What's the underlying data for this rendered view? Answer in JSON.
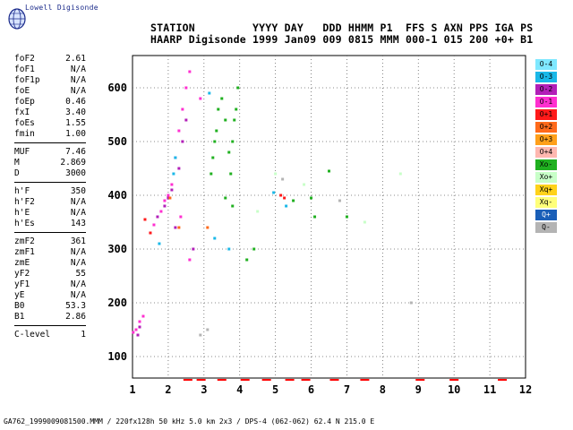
{
  "logo": {
    "text": "Lowell Digisonde"
  },
  "header": {
    "line1": "STATION         YYYY DAY   DDD HHMM P1  FFS S AXN PPS IGA PS",
    "line2": "HAARP Digisonde 1999 Jan09 009 0815 MMM 000-1 015 200 +0+ B1"
  },
  "params": [
    {
      "group": "critical",
      "rows": [
        {
          "name": "foF2",
          "value": "2.61"
        },
        {
          "name": "foF1",
          "value": "N/A"
        },
        {
          "name": "foF1p",
          "value": "N/A"
        },
        {
          "name": "foE",
          "value": "N/A"
        },
        {
          "name": "foEp",
          "value": "0.46"
        },
        {
          "name": "fxI",
          "value": "3.40"
        },
        {
          "name": "foEs",
          "value": "1.55"
        },
        {
          "name": "fmin",
          "value": "1.00"
        }
      ]
    },
    {
      "group": "muf",
      "rows": [
        {
          "name": "MUF",
          "value": "7.46"
        },
        {
          "name": "M",
          "value": "2.869"
        },
        {
          "name": "D",
          "value": "3000"
        }
      ]
    },
    {
      "group": "heights",
      "rows": [
        {
          "name": "h'F",
          "value": "350"
        },
        {
          "name": "h'F2",
          "value": "N/A"
        },
        {
          "name": "h'E",
          "value": "N/A"
        },
        {
          "name": "h'Es",
          "value": "143"
        }
      ]
    },
    {
      "group": "profile",
      "rows": [
        {
          "name": "zmF2",
          "value": "361"
        },
        {
          "name": "zmF1",
          "value": "N/A"
        },
        {
          "name": "zmE",
          "value": "N/A"
        },
        {
          "name": "yF2",
          "value": "55"
        },
        {
          "name": "yF1",
          "value": "N/A"
        },
        {
          "name": "yE",
          "value": "N/A"
        },
        {
          "name": "B0",
          "value": "53.3"
        },
        {
          "name": "B1",
          "value": "2.86"
        }
      ]
    },
    {
      "group": "level",
      "rows": [
        {
          "name": "C-level",
          "value": "1"
        }
      ]
    }
  ],
  "legend": [
    {
      "label": "O-4",
      "color": "#7fe8ff"
    },
    {
      "label": "O-3",
      "color": "#1ab8e8"
    },
    {
      "label": "O-2",
      "color": "#b21fb8"
    },
    {
      "label": "O-1",
      "color": "#ff2fd0"
    },
    {
      "label": "O+1",
      "color": "#ff1a1a"
    },
    {
      "label": "O+2",
      "color": "#ff6a1a"
    },
    {
      "label": "O+3",
      "color": "#ffa01a"
    },
    {
      "label": "O+4",
      "color": "#ffb8b0"
    },
    {
      "label": "Xo-",
      "color": "#20b020"
    },
    {
      "label": "Xo+",
      "color": "#c8ffc8"
    },
    {
      "label": "Xq+",
      "color": "#ffd21a"
    },
    {
      "label": "Xq-",
      "color": "#ffff7a"
    },
    {
      "label": "Q+",
      "color": "#1a5fb8"
    },
    {
      "label": "Q-",
      "color": "#b4b4b4"
    }
  ],
  "footer": "GA762_1999009081500.MMM / 220fx128h 50 kHz 5.0 km 2x3 / DPS-4 (062-062) 62.4 N 215.0 E",
  "chart_data": {
    "type": "scatter",
    "title": "",
    "xlabel": "",
    "ylabel": "",
    "xlim": [
      1,
      12
    ],
    "ylim": [
      60,
      660
    ],
    "xticks": [
      1,
      2,
      3,
      4,
      5,
      6,
      7,
      8,
      9,
      10,
      11,
      12
    ],
    "yticks": [
      100,
      200,
      300,
      400,
      500,
      600
    ],
    "grid": true,
    "legend_position": "right",
    "series": [
      {
        "name": "O-1",
        "color": "#ff2fd0",
        "points": [
          [
            1.02,
            145
          ],
          [
            1.1,
            150
          ],
          [
            1.2,
            165
          ],
          [
            1.3,
            175
          ],
          [
            1.5,
            330
          ],
          [
            1.6,
            345
          ],
          [
            1.8,
            370
          ],
          [
            1.9,
            390
          ],
          [
            2.0,
            400
          ],
          [
            2.1,
            420
          ],
          [
            2.2,
            470
          ],
          [
            2.3,
            520
          ],
          [
            2.4,
            560
          ],
          [
            2.5,
            600
          ],
          [
            2.6,
            630
          ],
          [
            2.9,
            580
          ],
          [
            2.35,
            360
          ],
          [
            2.6,
            280
          ]
        ]
      },
      {
        "name": "O-2",
        "color": "#b21fb8",
        "points": [
          [
            1.15,
            140
          ],
          [
            1.2,
            155
          ],
          [
            1.7,
            360
          ],
          [
            1.9,
            380
          ],
          [
            2.0,
            395
          ],
          [
            2.1,
            410
          ],
          [
            2.3,
            450
          ],
          [
            2.4,
            500
          ],
          [
            2.5,
            540
          ],
          [
            2.7,
            300
          ],
          [
            2.2,
            340
          ]
        ]
      },
      {
        "name": "O+1",
        "color": "#ff1a1a",
        "points": [
          [
            1.35,
            355
          ],
          [
            1.5,
            330
          ],
          [
            5.15,
            400
          ],
          [
            5.25,
            395
          ]
        ]
      },
      {
        "name": "O+2",
        "color": "#ff6a1a",
        "points": [
          [
            2.05,
            395
          ],
          [
            2.3,
            340
          ],
          [
            3.1,
            340
          ]
        ]
      },
      {
        "name": "O-3",
        "color": "#1ab8e8",
        "points": [
          [
            2.15,
            440
          ],
          [
            2.2,
            470
          ],
          [
            3.15,
            590
          ],
          [
            3.3,
            320
          ],
          [
            3.7,
            300
          ],
          [
            4.95,
            405
          ],
          [
            5.3,
            380
          ],
          [
            1.75,
            310
          ]
        ]
      },
      {
        "name": "Xo-",
        "color": "#20b020",
        "points": [
          [
            3.2,
            440
          ],
          [
            3.25,
            470
          ],
          [
            3.3,
            500
          ],
          [
            3.35,
            520
          ],
          [
            3.4,
            560
          ],
          [
            3.5,
            580
          ],
          [
            3.6,
            540
          ],
          [
            3.7,
            480
          ],
          [
            3.75,
            440
          ],
          [
            3.8,
            500
          ],
          [
            3.85,
            540
          ],
          [
            3.9,
            560
          ],
          [
            3.95,
            600
          ],
          [
            3.6,
            395
          ],
          [
            3.8,
            380
          ],
          [
            4.2,
            280
          ],
          [
            4.4,
            300
          ],
          [
            6.0,
            395
          ],
          [
            6.5,
            445
          ],
          [
            7.0,
            360
          ],
          [
            5.5,
            390
          ],
          [
            6.1,
            360
          ]
        ]
      },
      {
        "name": "Xo+",
        "color": "#c8ffc8",
        "points": [
          [
            4.5,
            370
          ],
          [
            5.0,
            440
          ],
          [
            5.8,
            420
          ],
          [
            8.5,
            440
          ],
          [
            7.5,
            350
          ]
        ]
      },
      {
        "name": "Q-",
        "color": "#b4b4b4",
        "points": [
          [
            2.9,
            140
          ],
          [
            3.1,
            150
          ],
          [
            8.8,
            200
          ],
          [
            5.2,
            430
          ],
          [
            6.8,
            390
          ]
        ]
      }
    ],
    "red_markers": [
      2.55,
      2.92,
      3.5,
      4.15,
      4.75,
      5.4,
      5.85,
      6.65,
      7.5,
      9.05,
      10.0,
      11.35
    ]
  }
}
